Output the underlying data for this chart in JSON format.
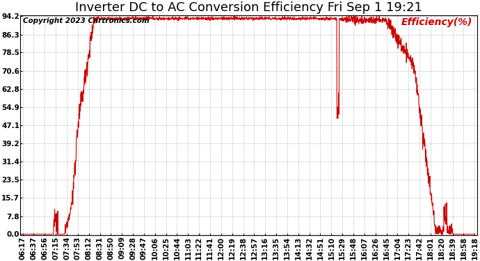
{
  "title": "Inverter DC to AC Conversion Efficiency Fri Sep 1 19:21",
  "copyright": "Copyright 2023 Cartronics.com",
  "legend_label": "Efficiency(%)",
  "line_color": "#cc0000",
  "background_color": "#ffffff",
  "grid_color": "#999999",
  "yticks": [
    0.0,
    7.8,
    15.7,
    23.5,
    31.4,
    39.2,
    47.1,
    54.9,
    62.8,
    70.6,
    78.5,
    86.3,
    94.2
  ],
  "ymin": 0.0,
  "ymax": 94.2,
  "xtick_labels": [
    "06:17",
    "06:37",
    "06:56",
    "07:15",
    "07:34",
    "07:53",
    "08:12",
    "08:31",
    "08:50",
    "09:09",
    "09:28",
    "09:47",
    "10:06",
    "10:25",
    "10:44",
    "11:03",
    "11:22",
    "11:41",
    "12:00",
    "12:19",
    "12:38",
    "12:57",
    "13:16",
    "13:35",
    "13:54",
    "14:13",
    "14:32",
    "14:51",
    "15:10",
    "15:29",
    "15:48",
    "16:07",
    "16:26",
    "16:45",
    "17:04",
    "17:23",
    "17:42",
    "18:01",
    "18:20",
    "18:39",
    "18:58",
    "19:18"
  ],
  "title_fontsize": 13,
  "label_fontsize": 10,
  "tick_fontsize": 7.5,
  "copyright_fontsize": 7.5,
  "figwidth": 6.9,
  "figheight": 3.75,
  "dpi": 100
}
